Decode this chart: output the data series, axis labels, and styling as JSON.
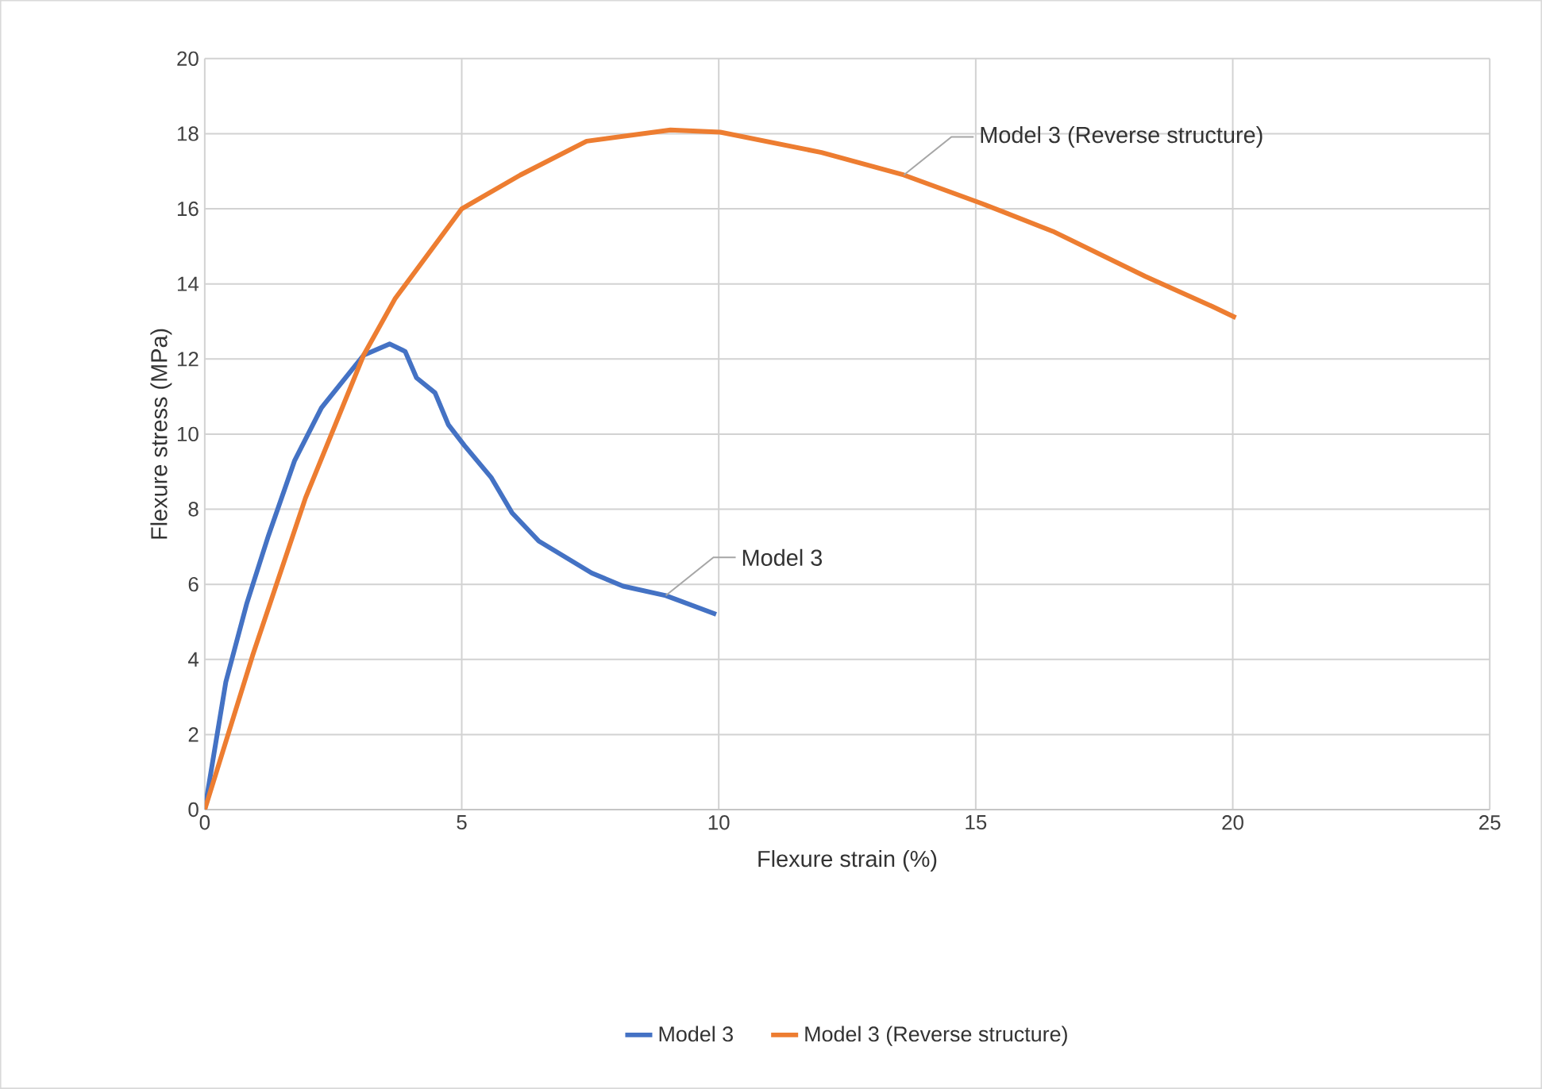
{
  "chart_data": {
    "type": "line",
    "xlabel": "Flexure strain (%)",
    "ylabel": "Flexure stress (MPa)",
    "xlim": [
      0,
      25
    ],
    "xticks": [
      0,
      5,
      10,
      15,
      20,
      25
    ],
    "ylim": [
      0,
      20
    ],
    "yticks": [
      0,
      2,
      4,
      6,
      8,
      10,
      12,
      14,
      16,
      18,
      20
    ],
    "grid": true,
    "legend": "bottom",
    "marker": "none",
    "line_style": "solid",
    "series": [
      {
        "name": "Model 3",
        "color": "#4472c4",
        "x": [
          0,
          0.41,
          0.82,
          1.24,
          1.75,
          2.27,
          3.09,
          3.6,
          3.9,
          4.12,
          4.48,
          4.74,
          5.05,
          5.57,
          5.98,
          6.5,
          7.53,
          8.14,
          8.97,
          9.95
        ],
        "values": [
          0,
          3.4,
          5.5,
          7.3,
          9.3,
          10.7,
          12.1,
          12.4,
          12.2,
          11.5,
          11.1,
          10.25,
          9.7,
          8.85,
          7.9,
          7.15,
          6.3,
          5.95,
          5.7,
          5.2
        ]
      },
      {
        "name": "Model 3 (Reverse structure)",
        "color": "#ed7d31",
        "x": [
          0,
          0.93,
          1.96,
          3.09,
          3.7,
          5.0,
          6.14,
          7.43,
          9.06,
          10.03,
          12.0,
          13.6,
          15.1,
          16.5,
          18.3,
          19.6,
          20.06
        ],
        "values": [
          0,
          4.1,
          8.3,
          12.1,
          13.6,
          16.0,
          16.9,
          17.8,
          18.1,
          18.04,
          17.5,
          16.9,
          16.15,
          15.4,
          14.2,
          13.4,
          13.1
        ]
      }
    ],
    "annotations": [
      {
        "text": "Model 3",
        "x": 8.97,
        "y": 5.7
      },
      {
        "text": "Model 3 (Reverse structure)",
        "x": 13.6,
        "y": 16.9
      }
    ]
  }
}
